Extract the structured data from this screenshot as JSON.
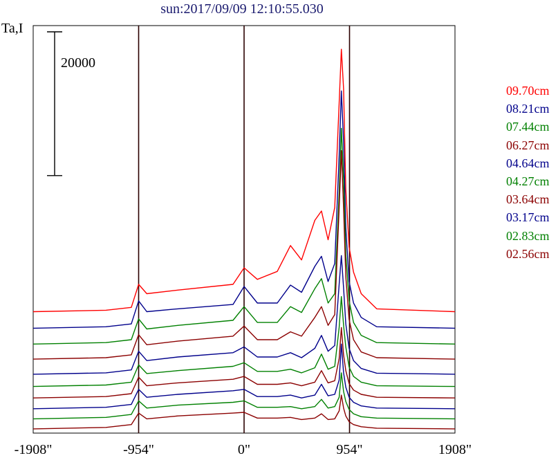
{
  "chart_data": {
    "type": "line",
    "title": "sun:2017/09/09 12:10:55.030",
    "ylabel": "Ta,I",
    "xlabel": "",
    "x_ticks": [
      {
        "value": -1908,
        "label": "-1908\""
      },
      {
        "value": -954,
        "label": "-954\""
      },
      {
        "value": 0,
        "label": "0\""
      },
      {
        "value": 954,
        "label": "954\""
      },
      {
        "value": 1908,
        "label": "1908\""
      }
    ],
    "xlim": [
      -1908,
      1908
    ],
    "vertical_lines": [
      -954,
      0,
      954
    ],
    "scale_bar": {
      "label": "20000",
      "value": 20000
    },
    "legend_position": "right",
    "series": [
      {
        "name": "09.70cm",
        "color": "#ff0000",
        "baseline": 15500,
        "x": [
          -1908,
          -1250,
          -1020,
          -954,
          -880,
          -600,
          -100,
          0,
          120,
          300,
          420,
          520,
          640,
          700,
          760,
          820,
          860,
          880,
          900,
          920,
          950,
          990,
          1060,
          1200,
          1908
        ],
        "y": [
          0,
          200,
          600,
          3800,
          2500,
          3000,
          3800,
          6100,
          4500,
          5600,
          9200,
          7200,
          12700,
          14000,
          10000,
          14500,
          29000,
          36500,
          31000,
          17000,
          9000,
          5500,
          2500,
          400,
          0
        ]
      },
      {
        "name": "08.21cm",
        "color": "#00008b",
        "baseline": 13200,
        "x": [
          -1908,
          -1250,
          -1020,
          -954,
          -880,
          -600,
          -100,
          0,
          120,
          300,
          420,
          520,
          640,
          700,
          760,
          820,
          860,
          880,
          900,
          920,
          950,
          990,
          1060,
          1200,
          1908
        ],
        "y": [
          0,
          200,
          600,
          3800,
          2300,
          2700,
          3300,
          5800,
          3500,
          3500,
          6000,
          5000,
          8600,
          10000,
          6500,
          9000,
          24000,
          33000,
          26000,
          14000,
          6500,
          3500,
          1500,
          200,
          0
        ]
      },
      {
        "name": "07.44cm",
        "color": "#008000",
        "baseline": 11000,
        "x": [
          -1908,
          -1250,
          -1020,
          -954,
          -880,
          -600,
          -100,
          0,
          120,
          300,
          420,
          520,
          640,
          700,
          760,
          820,
          860,
          880,
          900,
          920,
          950,
          990,
          1060,
          1200,
          1908
        ],
        "y": [
          0,
          200,
          600,
          3500,
          2100,
          2600,
          3300,
          5200,
          3000,
          3000,
          5200,
          4400,
          7700,
          9100,
          5700,
          7000,
          21000,
          30000,
          23000,
          12500,
          6000,
          3000,
          1200,
          200,
          0
        ]
      },
      {
        "name": "06.27cm",
        "color": "#8b0000",
        "baseline": 8900,
        "x": [
          -1908,
          -1250,
          -1020,
          -954,
          -880,
          -600,
          -100,
          0,
          120,
          300,
          420,
          520,
          640,
          700,
          760,
          820,
          860,
          880,
          900,
          920,
          950,
          990,
          1060,
          1200,
          1908
        ],
        "y": [
          0,
          200,
          600,
          3400,
          2000,
          2500,
          3200,
          4600,
          2700,
          2700,
          3800,
          3200,
          5800,
          7300,
          4700,
          6200,
          21000,
          29000,
          21000,
          11500,
          5500,
          2700,
          1000,
          200,
          0
        ]
      },
      {
        "name": "04.64cm",
        "color": "#00008b",
        "baseline": 6800,
        "x": [
          -1908,
          -1250,
          -1020,
          -954,
          -880,
          -600,
          -100,
          0,
          120,
          300,
          420,
          520,
          640,
          700,
          760,
          820,
          860,
          880,
          900,
          920,
          950,
          990,
          1060,
          1200,
          1908
        ],
        "y": [
          0,
          200,
          600,
          3200,
          1900,
          2400,
          3000,
          3800,
          2400,
          2400,
          3000,
          2300,
          3600,
          5400,
          3200,
          4000,
          12500,
          16500,
          12000,
          7000,
          3600,
          1900,
          800,
          150,
          0
        ]
      },
      {
        "name": "04.27cm",
        "color": "#008000",
        "baseline": 5100,
        "x": [
          -1908,
          -1250,
          -1020,
          -954,
          -880,
          -600,
          -100,
          0,
          120,
          300,
          420,
          520,
          640,
          700,
          760,
          820,
          860,
          880,
          900,
          920,
          950,
          990,
          1060,
          1200,
          1908
        ],
        "y": [
          0,
          200,
          600,
          3000,
          1800,
          2200,
          2800,
          3300,
          2100,
          2100,
          2400,
          1900,
          2600,
          4500,
          2400,
          2800,
          8200,
          12500,
          8500,
          5500,
          2700,
          1400,
          600,
          100,
          0
        ]
      },
      {
        "name": "03.64cm",
        "color": "#8b0000",
        "baseline": 3500,
        "x": [
          -1908,
          -1250,
          -1020,
          -954,
          -880,
          -600,
          -100,
          0,
          120,
          300,
          420,
          520,
          640,
          700,
          760,
          820,
          860,
          880,
          900,
          920,
          950,
          990,
          1060,
          1200,
          1908
        ],
        "y": [
          0,
          200,
          600,
          2900,
          1700,
          2100,
          2600,
          3000,
          1900,
          1900,
          2100,
          1700,
          2200,
          3800,
          2100,
          2400,
          5500,
          9800,
          6000,
          3800,
          2000,
          1100,
          500,
          100,
          0
        ]
      },
      {
        "name": "03.17cm",
        "color": "#00008b",
        "baseline": 2000,
        "x": [
          -1908,
          -1250,
          -1020,
          -954,
          -880,
          -600,
          -100,
          0,
          120,
          300,
          420,
          520,
          640,
          700,
          760,
          820,
          860,
          880,
          900,
          920,
          950,
          990,
          1060,
          1200,
          1908
        ],
        "y": [
          0,
          200,
          600,
          2700,
          1600,
          2000,
          2500,
          2700,
          1700,
          1700,
          1900,
          1500,
          1900,
          3400,
          1800,
          2000,
          4000,
          9000,
          5000,
          3000,
          1600,
          900,
          400,
          100,
          0
        ]
      },
      {
        "name": "02.83cm",
        "color": "#008000",
        "baseline": 600,
        "x": [
          -1908,
          -1250,
          -1020,
          -954,
          -880,
          -600,
          -100,
          0,
          120,
          300,
          420,
          520,
          640,
          700,
          760,
          820,
          860,
          880,
          900,
          920,
          950,
          990,
          1060,
          1200,
          1908
        ],
        "y": [
          0,
          200,
          600,
          2500,
          1500,
          1900,
          2300,
          2500,
          1600,
          1600,
          1700,
          1400,
          1700,
          2700,
          1500,
          1700,
          3000,
          6400,
          3800,
          2400,
          1300,
          700,
          300,
          100,
          0
        ]
      },
      {
        "name": "02.56cm",
        "color": "#8b0000",
        "baseline": -800,
        "x": [
          -1908,
          -1250,
          -1020,
          -954,
          -880,
          -600,
          -100,
          0,
          120,
          300,
          420,
          520,
          640,
          700,
          760,
          820,
          860,
          880,
          900,
          920,
          950,
          990,
          1060,
          1200,
          1908
        ],
        "y": [
          0,
          200,
          600,
          2200,
          1400,
          1800,
          2200,
          2300,
          1500,
          1500,
          1600,
          1300,
          1500,
          2100,
          1300,
          1400,
          2500,
          4700,
          2900,
          1800,
          1000,
          600,
          300,
          100,
          0
        ]
      }
    ]
  }
}
